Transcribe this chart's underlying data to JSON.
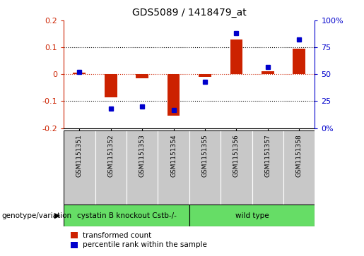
{
  "title": "GDS5089 / 1418479_at",
  "samples": [
    "GSM1151351",
    "GSM1151352",
    "GSM1151353",
    "GSM1151354",
    "GSM1151355",
    "GSM1151356",
    "GSM1151357",
    "GSM1151358"
  ],
  "transformed_count": [
    0.005,
    -0.085,
    -0.015,
    -0.155,
    -0.01,
    0.13,
    0.01,
    0.095
  ],
  "percentile_rank": [
    52,
    18,
    20,
    17,
    43,
    88,
    57,
    82
  ],
  "group_labels": [
    "cystatin B knockout Cstb-/-",
    "wild type"
  ],
  "bar_color": "#CC2200",
  "dot_color": "#0000CC",
  "left_ylim": [
    -0.2,
    0.2
  ],
  "right_ylim": [
    0,
    100
  ],
  "left_yticks": [
    -0.2,
    -0.1,
    0.0,
    0.1,
    0.2
  ],
  "right_yticks": [
    0,
    25,
    50,
    75,
    100
  ],
  "left_yticklabels": [
    "-0.2",
    "-0.1",
    "0",
    "0.1",
    "0.2"
  ],
  "right_yticklabels": [
    "0%",
    "25",
    "50",
    "75",
    "100%"
  ],
  "genotype_label": "genotype/variation",
  "legend_items": [
    "transformed count",
    "percentile rank within the sample"
  ],
  "background_color": "#ffffff",
  "green_color": "#66DD66",
  "gray_color": "#C8C8C8",
  "group_split": 4,
  "n_samples": 8
}
